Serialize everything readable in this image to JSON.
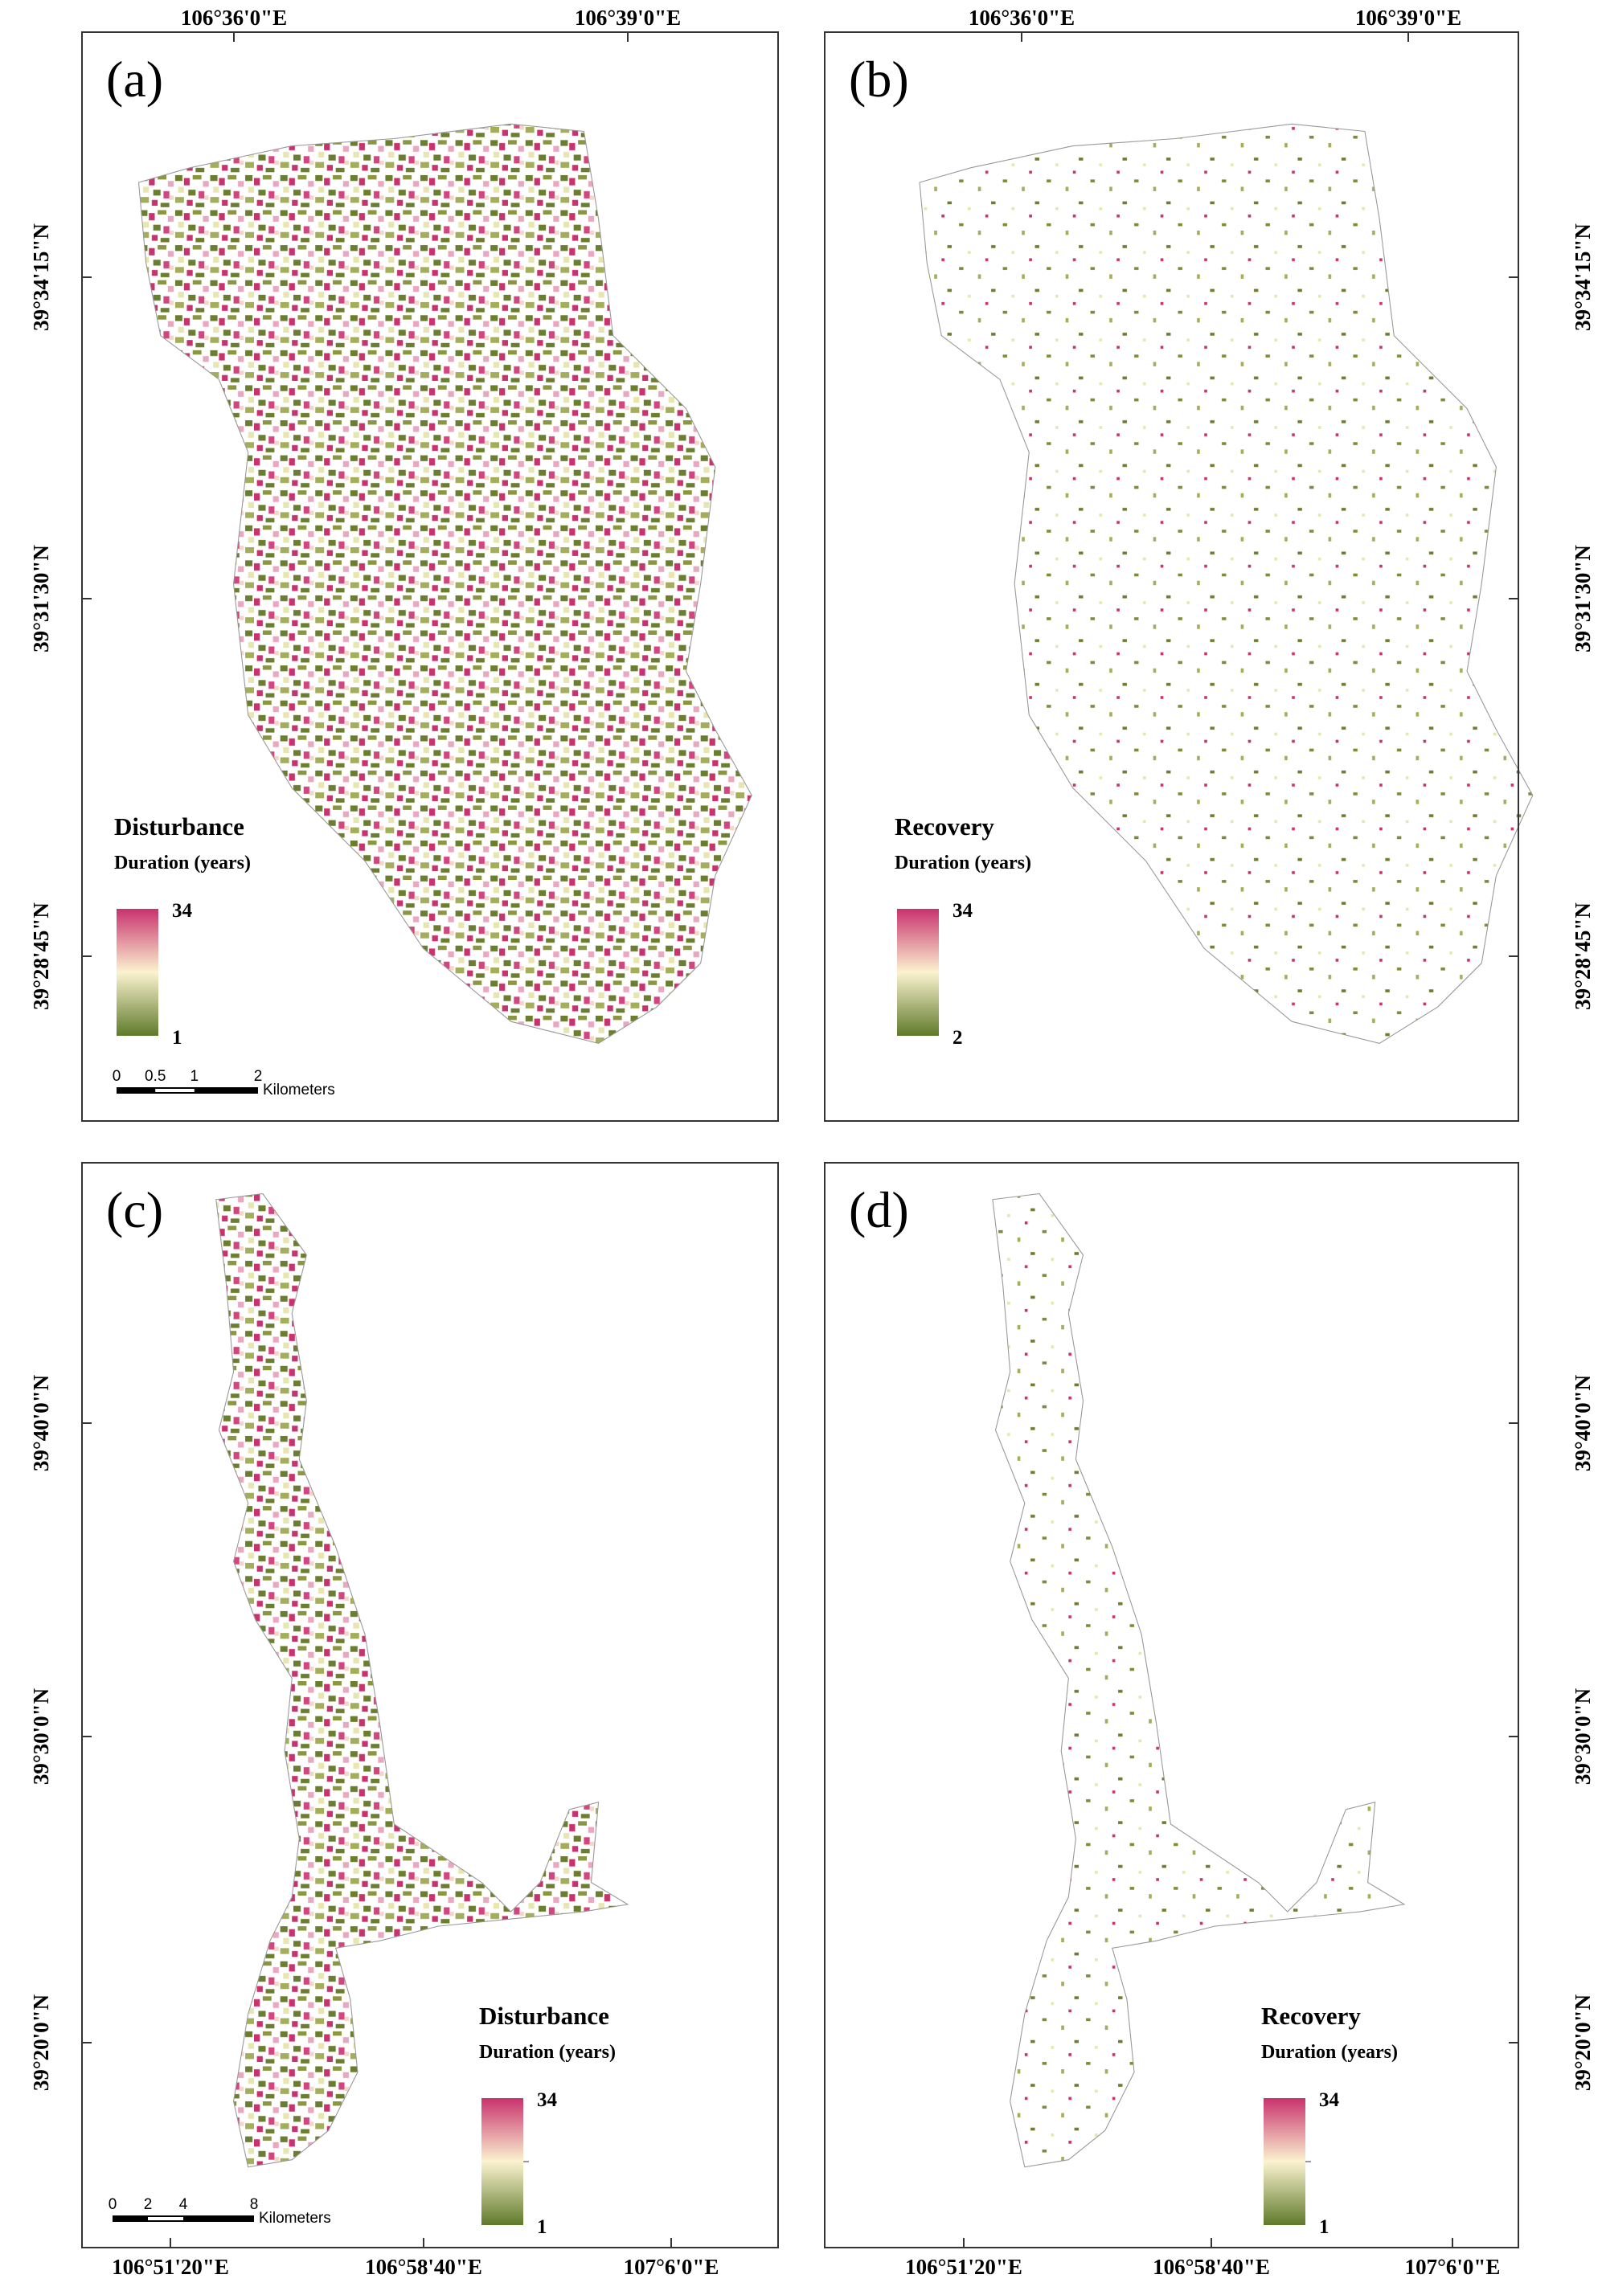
{
  "panels": [
    {
      "label": "(a)",
      "legend": {
        "title": "Disturbance",
        "subtitle": "Duration (years)",
        "max": "34",
        "min": "1"
      },
      "x_labels": [
        "106°36'0\"E",
        "106°39'0\"E"
      ],
      "y_labels": [
        "39°34'15\"N",
        "39°31'30\"N",
        "39°28'45\"N"
      ],
      "scale_bar": {
        "ticks": [
          "0",
          "0.5",
          "1",
          "2"
        ],
        "unit": "Kilometers"
      }
    },
    {
      "label": "(b)",
      "legend": {
        "title": "Recovery",
        "subtitle": "Duration (years)",
        "max": "34",
        "min": "2"
      },
      "x_labels": [
        "106°36'0\"E",
        "106°39'0\"E"
      ],
      "y_labels": [
        "39°34'15\"N",
        "39°31'30\"N",
        "39°28'45\"N"
      ]
    },
    {
      "label": "(c)",
      "legend": {
        "title": "Disturbance",
        "subtitle": "Duration (years)",
        "max": "34",
        "min": "1"
      },
      "x_labels": [
        "106°51'20\"E",
        "106°58'40\"E",
        "107°6'0\"E"
      ],
      "y_labels": [
        "39°40'0\"N",
        "39°30'0\"N",
        "39°20'0\"N"
      ],
      "scale_bar": {
        "ticks": [
          "0",
          "2",
          "4",
          "8"
        ],
        "unit": "Kilometers"
      }
    },
    {
      "label": "(d)",
      "legend": {
        "title": "Recovery",
        "subtitle": "Duration (years)",
        "max": "34",
        "min": "1"
      },
      "x_labels": [
        "106°51'20\"E",
        "106°58'40\"E",
        "107°6'0\"E"
      ],
      "y_labels": [
        "39°40'0\"N",
        "39°30'0\"N",
        "39°20'0\"N"
      ]
    }
  ]
}
